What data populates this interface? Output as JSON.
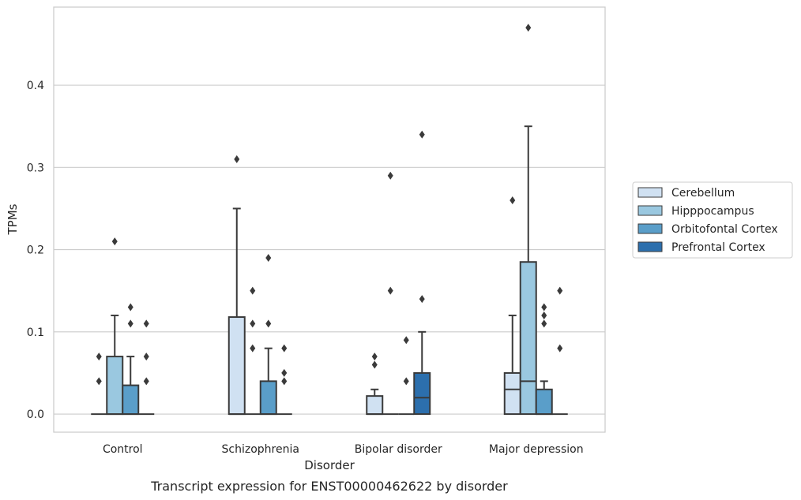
{
  "caption": "Transcript expression for ENST00000462622 by disorder",
  "chart_data": {
    "type": "box",
    "xlabel": "Disorder",
    "ylabel": "TPMs",
    "ylim": [
      -0.022,
      0.495
    ],
    "yticks": [
      0.0,
      0.1,
      0.2,
      0.3,
      0.4
    ],
    "ytick_labels": [
      "0.0",
      "0.1",
      "0.2",
      "0.3",
      "0.4"
    ],
    "grid": "horizontal",
    "legend_position": "right",
    "categories": [
      "Control",
      "Schizophrenia",
      "Bipolar disorder",
      "Major depression"
    ],
    "series": [
      {
        "name": "Cerebellum",
        "color": "#d0e1f2",
        "boxes": [
          {
            "q1": 0.0,
            "median": 0.0,
            "q3": 0.0,
            "whisker_low": 0.0,
            "whisker_high": 0.0,
            "outliers": [
              0.04,
              0.07
            ]
          },
          {
            "q1": 0.0,
            "median": 0.0,
            "q3": 0.118,
            "whisker_low": 0.0,
            "whisker_high": 0.25,
            "outliers": [
              0.31
            ]
          },
          {
            "q1": 0.0,
            "median": 0.0,
            "q3": 0.022,
            "whisker_low": 0.0,
            "whisker_high": 0.03,
            "outliers": [
              0.06,
              0.07
            ]
          },
          {
            "q1": 0.0,
            "median": 0.03,
            "q3": 0.05,
            "whisker_low": 0.0,
            "whisker_high": 0.12,
            "outliers": [
              0.26
            ]
          }
        ]
      },
      {
        "name": "Hipppocampus",
        "color": "#9ac8e0",
        "boxes": [
          {
            "q1": 0.0,
            "median": 0.0,
            "q3": 0.07,
            "whisker_low": 0.0,
            "whisker_high": 0.12,
            "outliers": [
              0.21
            ]
          },
          {
            "q1": 0.0,
            "median": 0.0,
            "q3": 0.0,
            "whisker_low": 0.0,
            "whisker_high": 0.0,
            "outliers": [
              0.08,
              0.11,
              0.15
            ]
          },
          {
            "q1": 0.0,
            "median": 0.0,
            "q3": 0.0,
            "whisker_low": 0.0,
            "whisker_high": 0.0,
            "outliers": [
              0.15,
              0.29
            ]
          },
          {
            "q1": 0.0,
            "median": 0.04,
            "q3": 0.185,
            "whisker_low": 0.0,
            "whisker_high": 0.35,
            "outliers": [
              0.47
            ]
          }
        ]
      },
      {
        "name": "Orbitofontal Cortex",
        "color": "#5a9ec9",
        "boxes": [
          {
            "q1": 0.0,
            "median": 0.0,
            "q3": 0.035,
            "whisker_low": 0.0,
            "whisker_high": 0.07,
            "outliers": [
              0.11,
              0.13
            ]
          },
          {
            "q1": 0.0,
            "median": 0.0,
            "q3": 0.04,
            "whisker_low": 0.0,
            "whisker_high": 0.08,
            "outliers": [
              0.11,
              0.19
            ]
          },
          {
            "q1": 0.0,
            "median": 0.0,
            "q3": 0.0,
            "whisker_low": 0.0,
            "whisker_high": 0.0,
            "outliers": [
              0.04,
              0.09
            ]
          },
          {
            "q1": 0.0,
            "median": 0.0,
            "q3": 0.03,
            "whisker_low": 0.0,
            "whisker_high": 0.04,
            "outliers": [
              0.11,
              0.12,
              0.13
            ]
          }
        ]
      },
      {
        "name": "Prefrontal Cortex",
        "color": "#2c6fad",
        "boxes": [
          {
            "q1": 0.0,
            "median": 0.0,
            "q3": 0.0,
            "whisker_low": 0.0,
            "whisker_high": 0.0,
            "outliers": [
              0.04,
              0.07,
              0.11
            ]
          },
          {
            "q1": 0.0,
            "median": 0.0,
            "q3": 0.0,
            "whisker_low": 0.0,
            "whisker_high": 0.0,
            "outliers": [
              0.04,
              0.05,
              0.08
            ]
          },
          {
            "q1": 0.0,
            "median": 0.02,
            "q3": 0.05,
            "whisker_low": 0.0,
            "whisker_high": 0.1,
            "outliers": [
              0.14,
              0.34
            ]
          },
          {
            "q1": 0.0,
            "median": 0.0,
            "q3": 0.0,
            "whisker_low": 0.0,
            "whisker_high": 0.0,
            "outliers": [
              0.08,
              0.15
            ]
          }
        ]
      }
    ]
  }
}
